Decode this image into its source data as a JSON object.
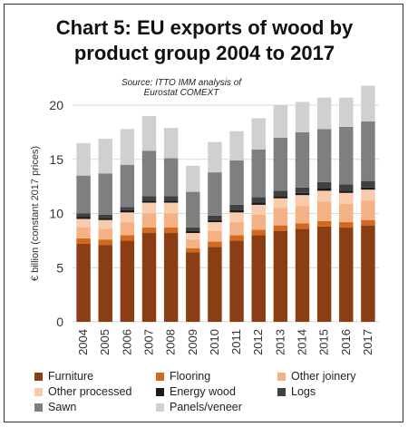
{
  "title_line1": "Chart 5: EU exports of wood by",
  "title_line2": "product group 2004 to 2017",
  "source_line1": "Source: ITTO IMM analysis of",
  "source_line2": "Eurostat COMEXT",
  "chart_data": {
    "type": "bar",
    "stacked": true,
    "ylabel": "€ billion (constant 2017 prices)",
    "ylim": [
      0,
      20
    ],
    "yticks": [
      0,
      5,
      10,
      15,
      20
    ],
    "grid": true,
    "legend_position": "bottom",
    "categories": [
      "2004",
      "2005",
      "2006",
      "2007",
      "2008",
      "2009",
      "2010",
      "2011",
      "2012",
      "2013",
      "2014",
      "2015",
      "2016",
      "2017"
    ],
    "tick_labels": [
      "2004",
      "2005",
      "2006",
      "2007",
      "2008",
      "2009",
      "2010",
      "2011",
      "2012",
      "2013",
      "2014",
      "2015",
      "2016",
      "2017"
    ],
    "series": [
      {
        "name": "Furniture",
        "color": "#8B3E13",
        "values": [
          7.2,
          7.1,
          7.5,
          8.2,
          8.2,
          6.4,
          6.9,
          7.5,
          8.0,
          8.4,
          8.6,
          8.8,
          8.7,
          8.9
        ]
      },
      {
        "name": "Flooring",
        "color": "#D2691E",
        "values": [
          0.5,
          0.5,
          0.5,
          0.5,
          0.5,
          0.4,
          0.5,
          0.5,
          0.5,
          0.5,
          0.5,
          0.5,
          0.5,
          0.5
        ]
      },
      {
        "name": "Other joinery",
        "color": "#F4B183",
        "values": [
          1.0,
          1.0,
          1.2,
          1.3,
          1.3,
          0.8,
          1.0,
          1.2,
          1.4,
          1.6,
          1.6,
          1.8,
          1.7,
          1.8
        ]
      },
      {
        "name": "Other processed",
        "color": "#F8CBAD",
        "values": [
          0.8,
          0.8,
          0.9,
          1.0,
          1.0,
          0.6,
          0.8,
          0.9,
          0.9,
          0.9,
          1.0,
          1.0,
          1.0,
          1.0
        ]
      },
      {
        "name": "Energy wood",
        "color": "#1A1A1A",
        "values": [
          0.2,
          0.2,
          0.2,
          0.2,
          0.2,
          0.2,
          0.2,
          0.2,
          0.2,
          0.2,
          0.2,
          0.2,
          0.2,
          0.2
        ]
      },
      {
        "name": "Logs",
        "color": "#404040",
        "values": [
          0.3,
          0.3,
          0.3,
          0.4,
          0.4,
          0.3,
          0.4,
          0.5,
          0.5,
          0.5,
          0.5,
          0.6,
          0.6,
          0.6
        ]
      },
      {
        "name": "Sawn",
        "color": "#7F7F7F",
        "values": [
          3.5,
          3.8,
          3.9,
          4.2,
          3.5,
          3.3,
          4.0,
          4.1,
          4.4,
          4.9,
          5.1,
          4.9,
          5.3,
          5.5
        ]
      },
      {
        "name": "Panels/veneer",
        "color": "#D0D0D0",
        "values": [
          3.0,
          3.2,
          3.3,
          3.2,
          2.8,
          2.4,
          2.8,
          2.7,
          2.9,
          3.0,
          2.8,
          2.9,
          2.7,
          3.3
        ]
      }
    ]
  }
}
